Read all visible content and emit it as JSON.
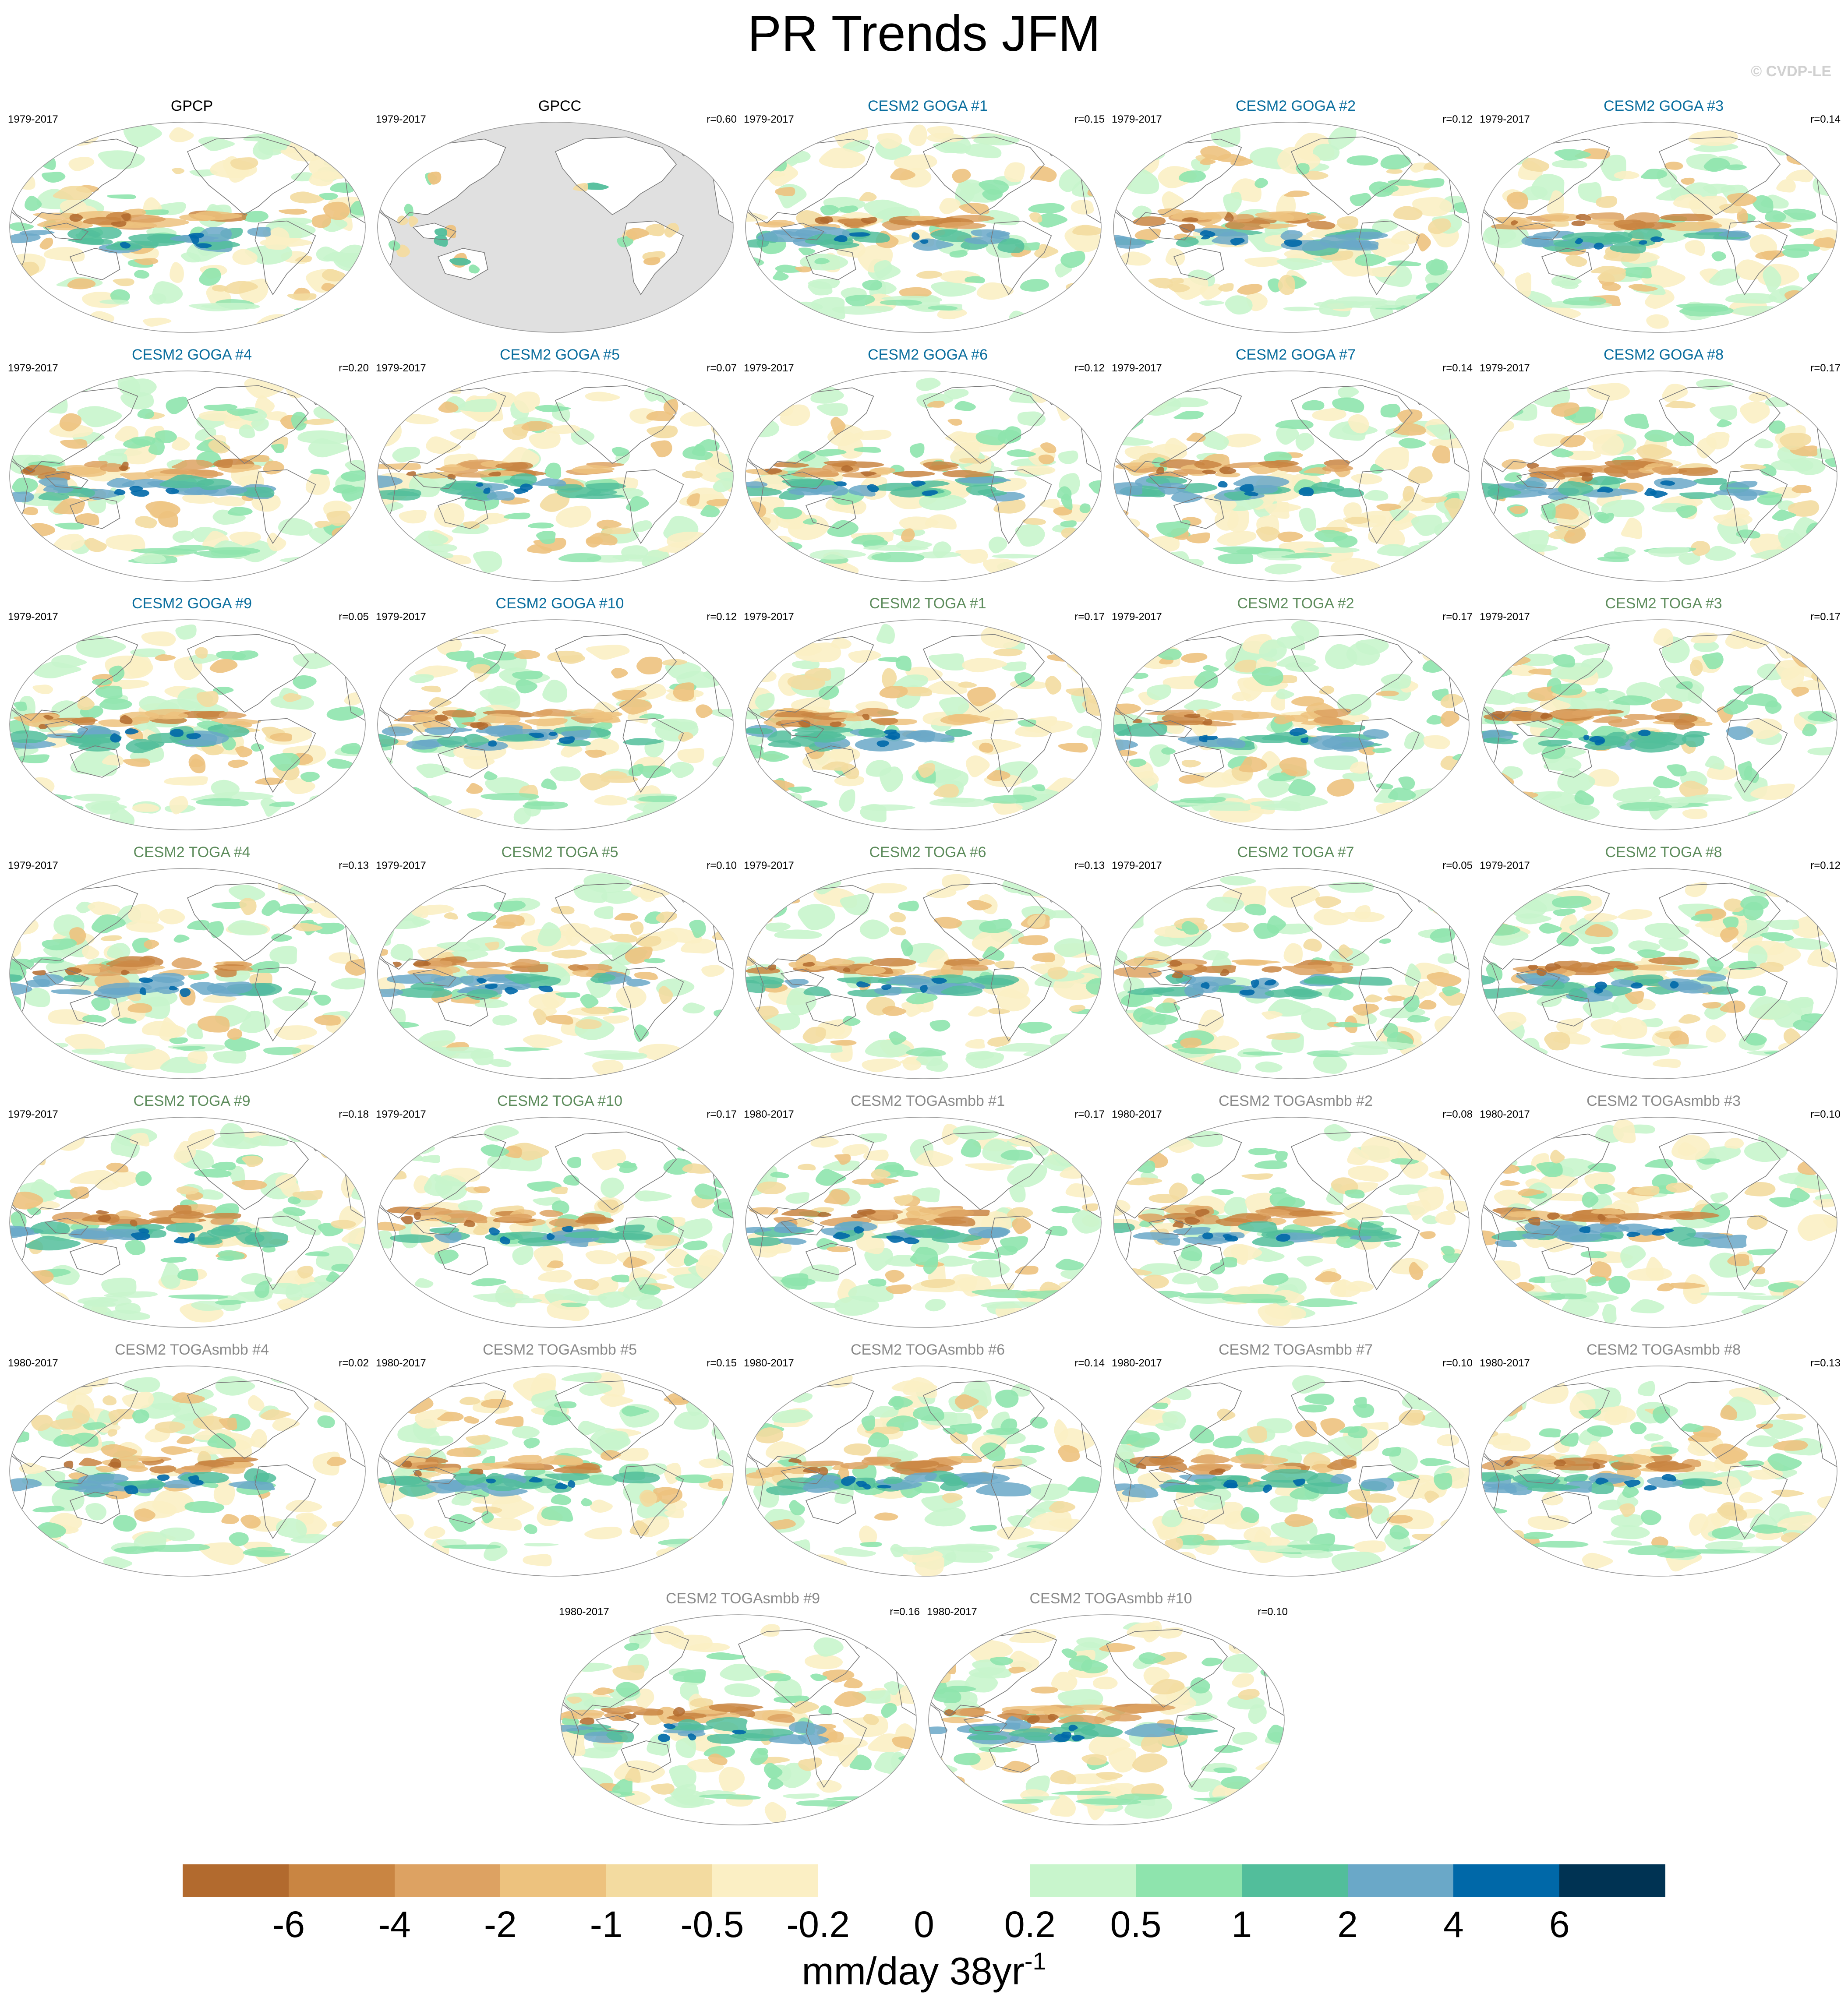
{
  "title": "PR Trends JFM",
  "credit": "© CVDP-LE",
  "colors": {
    "obs_title": "#000000",
    "goga_title": "#0a6e9e",
    "toga_title": "#5d8c5c",
    "togasmbb_title": "#8a8a8a",
    "missing_data": "#e0e0e0",
    "coastline": "#7a7a7a"
  },
  "panels": [
    {
      "title": "GPCP",
      "period": "1979-2017",
      "corr": "",
      "group": "obs",
      "fill": "full"
    },
    {
      "title": "GPCC",
      "period": "1979-2017",
      "corr": "r=0.60",
      "group": "obs",
      "fill": "land"
    },
    {
      "title": "CESM2 GOGA #1",
      "period": "1979-2017",
      "corr": "r=0.15",
      "group": "goga",
      "fill": "full"
    },
    {
      "title": "CESM2 GOGA #2",
      "period": "1979-2017",
      "corr": "r=0.12",
      "group": "goga",
      "fill": "full"
    },
    {
      "title": "CESM2 GOGA #3",
      "period": "1979-2017",
      "corr": "r=0.14",
      "group": "goga",
      "fill": "full"
    },
    {
      "title": "CESM2 GOGA #4",
      "period": "1979-2017",
      "corr": "r=0.20",
      "group": "goga",
      "fill": "full"
    },
    {
      "title": "CESM2 GOGA #5",
      "period": "1979-2017",
      "corr": "r=0.07",
      "group": "goga",
      "fill": "full"
    },
    {
      "title": "CESM2 GOGA #6",
      "period": "1979-2017",
      "corr": "r=0.12",
      "group": "goga",
      "fill": "full"
    },
    {
      "title": "CESM2 GOGA #7",
      "period": "1979-2017",
      "corr": "r=0.14",
      "group": "goga",
      "fill": "full"
    },
    {
      "title": "CESM2 GOGA #8",
      "period": "1979-2017",
      "corr": "r=0.17",
      "group": "goga",
      "fill": "full"
    },
    {
      "title": "CESM2 GOGA #9",
      "period": "1979-2017",
      "corr": "r=0.05",
      "group": "goga",
      "fill": "full"
    },
    {
      "title": "CESM2 GOGA #10",
      "period": "1979-2017",
      "corr": "r=0.12",
      "group": "goga",
      "fill": "full"
    },
    {
      "title": "CESM2 TOGA #1",
      "period": "1979-2017",
      "corr": "r=0.17",
      "group": "toga",
      "fill": "full"
    },
    {
      "title": "CESM2 TOGA #2",
      "period": "1979-2017",
      "corr": "r=0.17",
      "group": "toga",
      "fill": "full"
    },
    {
      "title": "CESM2 TOGA #3",
      "period": "1979-2017",
      "corr": "r=0.17",
      "group": "toga",
      "fill": "full"
    },
    {
      "title": "CESM2 TOGA #4",
      "period": "1979-2017",
      "corr": "r=0.13",
      "group": "toga",
      "fill": "full"
    },
    {
      "title": "CESM2 TOGA #5",
      "period": "1979-2017",
      "corr": "r=0.10",
      "group": "toga",
      "fill": "full"
    },
    {
      "title": "CESM2 TOGA #6",
      "period": "1979-2017",
      "corr": "r=0.13",
      "group": "toga",
      "fill": "full"
    },
    {
      "title": "CESM2 TOGA #7",
      "period": "1979-2017",
      "corr": "r=0.05",
      "group": "toga",
      "fill": "full"
    },
    {
      "title": "CESM2 TOGA #8",
      "period": "1979-2017",
      "corr": "r=0.12",
      "group": "toga",
      "fill": "full"
    },
    {
      "title": "CESM2 TOGA #9",
      "period": "1979-2017",
      "corr": "r=0.18",
      "group": "toga",
      "fill": "full"
    },
    {
      "title": "CESM2 TOGA #10",
      "period": "1979-2017",
      "corr": "r=0.17",
      "group": "toga",
      "fill": "full"
    },
    {
      "title": "CESM2 TOGAsmbb #1",
      "period": "1980-2017",
      "corr": "r=0.17",
      "group": "togasmbb",
      "fill": "full"
    },
    {
      "title": "CESM2 TOGAsmbb #2",
      "period": "1980-2017",
      "corr": "r=0.08",
      "group": "togasmbb",
      "fill": "full"
    },
    {
      "title": "CESM2 TOGAsmbb #3",
      "period": "1980-2017",
      "corr": "r=0.10",
      "group": "togasmbb",
      "fill": "full"
    },
    {
      "title": "CESM2 TOGAsmbb #4",
      "period": "1980-2017",
      "corr": "r=0.02",
      "group": "togasmbb",
      "fill": "full"
    },
    {
      "title": "CESM2 TOGAsmbb #5",
      "period": "1980-2017",
      "corr": "r=0.15",
      "group": "togasmbb",
      "fill": "full"
    },
    {
      "title": "CESM2 TOGAsmbb #6",
      "period": "1980-2017",
      "corr": "r=0.14",
      "group": "togasmbb",
      "fill": "full"
    },
    {
      "title": "CESM2 TOGAsmbb #7",
      "period": "1980-2017",
      "corr": "r=0.10",
      "group": "togasmbb",
      "fill": "full"
    },
    {
      "title": "CESM2 TOGAsmbb #8",
      "period": "1980-2017",
      "corr": "r=0.13",
      "group": "togasmbb",
      "fill": "full"
    },
    {
      "title": "CESM2 TOGAsmbb #9",
      "period": "1980-2017",
      "corr": "r=0.16",
      "group": "togasmbb",
      "fill": "full"
    },
    {
      "title": "CESM2 TOGAsmbb #10",
      "period": "1980-2017",
      "corr": "r=0.10",
      "group": "togasmbb",
      "fill": "full"
    }
  ],
  "colorbar": {
    "levels": [
      "-6",
      "-4",
      "-2",
      "-1",
      "-0.5",
      "-0.2",
      "0",
      "0.2",
      "0.5",
      "1",
      "2",
      "4",
      "6"
    ],
    "colors": [
      "#b26a2e",
      "#c98542",
      "#dda262",
      "#edc27e",
      "#f3dba0",
      "#fbefc4",
      "#ffffff",
      "#ffffff",
      "#c8f5cc",
      "#8ee4ad",
      "#52be9b",
      "#6aa8c8",
      "#0068a8",
      "#003353"
    ],
    "units": "mm/day 38yr",
    "units_exponent": "-1"
  }
}
